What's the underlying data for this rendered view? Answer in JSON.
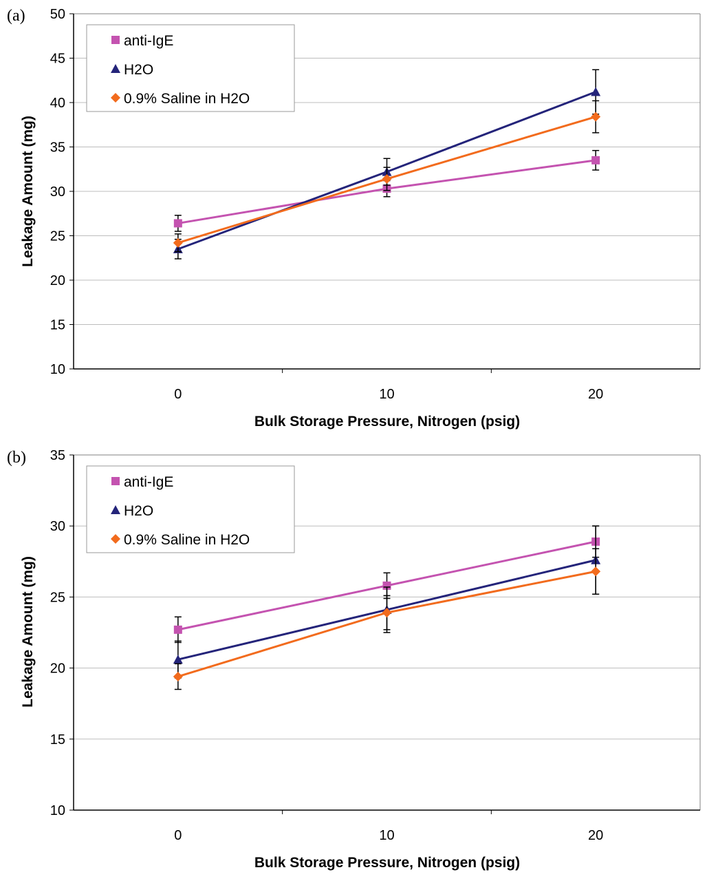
{
  "chart_data": [
    {
      "type": "line",
      "panel_label": "(a)",
      "xlabel": "Bulk Storage Pressure, Nitrogen (psig)",
      "ylabel": "Leakage Amount (mg)",
      "x": [
        0,
        10,
        20
      ],
      "xlim": [
        -5,
        25
      ],
      "xticks": [
        0,
        10,
        20
      ],
      "ylim": [
        10,
        50
      ],
      "yticks": [
        10,
        15,
        20,
        25,
        30,
        35,
        40,
        45,
        50
      ],
      "grid": "horizontal",
      "legend_position": "top-left",
      "series": [
        {
          "name": "anti-IgE",
          "marker": "square",
          "color": "#C453B0",
          "values": [
            26.4,
            30.3,
            33.5
          ],
          "errors": [
            0.9,
            0.9,
            1.1
          ]
        },
        {
          "name": "H2O",
          "marker": "triangle",
          "color": "#24247A",
          "values": [
            23.5,
            32.2,
            41.2
          ],
          "errors": [
            1.1,
            1.5,
            2.5
          ]
        },
        {
          "name": "0.9% Saline in H2O",
          "marker": "diamond",
          "color": "#F26B1D",
          "values": [
            24.2,
            31.4,
            38.4
          ],
          "errors": [
            1.0,
            1.3,
            1.8
          ]
        }
      ]
    },
    {
      "type": "line",
      "panel_label": "(b)",
      "xlabel": "Bulk Storage Pressure, Nitrogen (psig)",
      "ylabel": "Leakage Amount (mg)",
      "x": [
        0,
        10,
        20
      ],
      "xlim": [
        -5,
        25
      ],
      "xticks": [
        0,
        10,
        20
      ],
      "ylim": [
        10,
        35
      ],
      "yticks": [
        10,
        15,
        20,
        25,
        30,
        35
      ],
      "grid": "horizontal",
      "legend_position": "top-left",
      "series": [
        {
          "name": "anti-IgE",
          "marker": "square",
          "color": "#C453B0",
          "values": [
            22.7,
            25.8,
            28.9
          ],
          "errors": [
            0.9,
            0.9,
            1.1
          ]
        },
        {
          "name": "H2O",
          "marker": "triangle",
          "color": "#24247A",
          "values": [
            20.6,
            24.1,
            27.6
          ],
          "errors": [
            1.3,
            1.6,
            2.4
          ]
        },
        {
          "name": "0.9% Saline in H2O",
          "marker": "diamond",
          "color": "#F26B1D",
          "values": [
            19.4,
            23.9,
            26.8
          ],
          "errors": [
            0.9,
            1.2,
            1.6
          ]
        }
      ]
    }
  ]
}
